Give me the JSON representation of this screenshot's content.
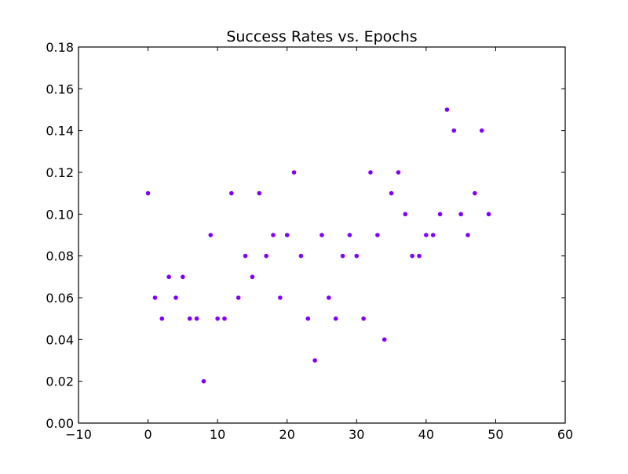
{
  "chart_data": {
    "type": "scatter",
    "title": "Success Rates vs. Epochs",
    "xlabel": "",
    "ylabel": "",
    "xlim": [
      -10,
      60
    ],
    "ylim": [
      0.0,
      0.18
    ],
    "xticks": [
      -10,
      0,
      10,
      20,
      30,
      40,
      50,
      60
    ],
    "xtick_labels": [
      "−10",
      "0",
      "10",
      "20",
      "30",
      "40",
      "50",
      "60"
    ],
    "yticks": [
      0.0,
      0.02,
      0.04,
      0.06,
      0.08,
      0.1,
      0.12,
      0.14,
      0.16,
      0.18
    ],
    "ytick_labels": [
      "0.00",
      "0.02",
      "0.04",
      "0.06",
      "0.08",
      "0.10",
      "0.12",
      "0.14",
      "0.16",
      "0.18"
    ],
    "grid": false,
    "legend": "none",
    "series": [
      {
        "color": "#8000ff",
        "points": [
          [
            0,
            0.11
          ],
          [
            1,
            0.06
          ],
          [
            2,
            0.05
          ],
          [
            3,
            0.07
          ],
          [
            4,
            0.06
          ],
          [
            5,
            0.07
          ],
          [
            6,
            0.05
          ],
          [
            7,
            0.05
          ],
          [
            8,
            0.02
          ],
          [
            9,
            0.09
          ],
          [
            10,
            0.05
          ],
          [
            11,
            0.05
          ],
          [
            12,
            0.11
          ],
          [
            13,
            0.06
          ],
          [
            14,
            0.08
          ],
          [
            15,
            0.07
          ],
          [
            16,
            0.11
          ],
          [
            17,
            0.08
          ],
          [
            18,
            0.09
          ],
          [
            19,
            0.06
          ],
          [
            20,
            0.09
          ],
          [
            21,
            0.12
          ],
          [
            22,
            0.08
          ],
          [
            23,
            0.05
          ],
          [
            24,
            0.03
          ],
          [
            25,
            0.09
          ],
          [
            26,
            0.06
          ],
          [
            27,
            0.05
          ],
          [
            28,
            0.08
          ],
          [
            29,
            0.09
          ],
          [
            30,
            0.08
          ],
          [
            31,
            0.05
          ],
          [
            32,
            0.12
          ],
          [
            33,
            0.09
          ],
          [
            34,
            0.04
          ],
          [
            35,
            0.11
          ],
          [
            36,
            0.12
          ],
          [
            37,
            0.1
          ],
          [
            38,
            0.08
          ],
          [
            39,
            0.08
          ],
          [
            40,
            0.09
          ],
          [
            41,
            0.09
          ],
          [
            42,
            0.1
          ],
          [
            43,
            0.15
          ],
          [
            44,
            0.14
          ],
          [
            45,
            0.1
          ],
          [
            46,
            0.09
          ],
          [
            47,
            0.11
          ],
          [
            48,
            0.14
          ],
          [
            49,
            0.1
          ]
        ]
      }
    ]
  }
}
